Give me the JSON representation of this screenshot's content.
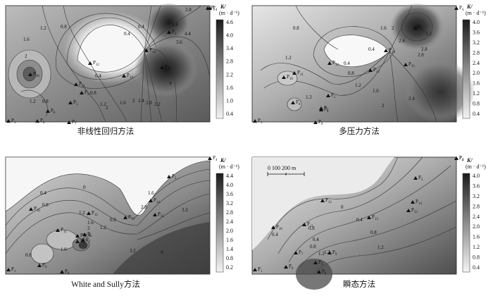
{
  "unit": {
    "k_label": "K/",
    "unit_label": "(m · d⁻¹)"
  },
  "scale_bar": {
    "label": "0 100 200 m"
  },
  "chart_data": [
    {
      "type": "heatmap",
      "caption": "非线性回归方法",
      "colorbar_ticks": [
        "4.6",
        "4.0",
        "3.4",
        "2.8",
        "2.2",
        "1.6",
        "1.0",
        "0.4"
      ],
      "colorbar_range": [
        0.4,
        4.6
      ],
      "wells": [
        {
          "label": "P",
          "sub": "1"
        },
        {
          "label": "P",
          "sub": "2"
        },
        {
          "label": "P",
          "sub": "3"
        },
        {
          "label": "P",
          "sub": "4"
        },
        {
          "label": "P",
          "sub": "5"
        },
        {
          "label": "P",
          "sub": "6"
        },
        {
          "label": "P",
          "sub": "7"
        },
        {
          "label": "P",
          "sub": "8"
        },
        {
          "label": "P",
          "sub": "9"
        },
        {
          "label": "P",
          "sub": "10"
        },
        {
          "label": "P",
          "sub": "11"
        },
        {
          "label": "P",
          "sub": "12"
        },
        {
          "label": "P",
          "sub": "13"
        },
        {
          "label": "P",
          "sub": "14"
        },
        {
          "label": "P",
          "sub": "15"
        }
      ],
      "contour_labels": [
        "1.2",
        "0.8",
        "1.6",
        "2",
        "2",
        "1.2",
        "0.8",
        "0.4",
        "0.4",
        "0.8",
        "1.2",
        "1.6",
        "2",
        "2.4",
        "2.8",
        "3.2",
        "3.6",
        "4",
        "4.4",
        "0.4",
        "2.4",
        "2.8"
      ]
    },
    {
      "type": "heatmap",
      "caption": "多压力方法",
      "colorbar_ticks": [
        "4.0",
        "3.6",
        "3.2",
        "2.8",
        "2.4",
        "2.0",
        "1.6",
        "1.2",
        "0.8",
        "0.4"
      ],
      "colorbar_range": [
        0.4,
        4.0
      ],
      "wells": [
        {
          "label": "P",
          "sub": "1"
        },
        {
          "label": "P",
          "sub": "2"
        },
        {
          "label": "P",
          "sub": "3"
        },
        {
          "label": "P",
          "sub": "4"
        },
        {
          "label": "P",
          "sub": "5"
        },
        {
          "label": "P",
          "sub": "6"
        },
        {
          "label": "P",
          "sub": "7"
        },
        {
          "label": "P",
          "sub": "8"
        },
        {
          "label": "P",
          "sub": "9"
        },
        {
          "label": "P",
          "sub": "10"
        },
        {
          "label": "P",
          "sub": "11"
        },
        {
          "label": "P",
          "sub": "12"
        },
        {
          "label": "P",
          "sub": "13"
        },
        {
          "label": "P",
          "sub": "14"
        },
        {
          "label": "P",
          "sub": "15"
        }
      ],
      "contour_labels": [
        "0.8",
        "0.4",
        "1.2",
        "0.8",
        "0.4",
        "1.2",
        "1.6",
        "2",
        "2.4",
        "2.8",
        "1.2",
        "1.6",
        "2",
        "2.4",
        "3.2",
        "2.8"
      ]
    },
    {
      "type": "heatmap",
      "caption": "White and Sully方法",
      "colorbar_ticks": [
        "4.4",
        "4.0",
        "3.6",
        "3.2",
        "2.8",
        "2.4",
        "2.0",
        "1.6",
        "1.4",
        "0.8",
        "0.2"
      ],
      "colorbar_range": [
        0.2,
        4.4
      ],
      "wells": [
        {
          "label": "P",
          "sub": "1"
        },
        {
          "label": "P",
          "sub": "2"
        },
        {
          "label": "P",
          "sub": "3"
        },
        {
          "label": "P",
          "sub": "4"
        },
        {
          "label": "P",
          "sub": "5"
        },
        {
          "label": "P",
          "sub": "6"
        },
        {
          "label": "P",
          "sub": "7"
        },
        {
          "label": "P",
          "sub": "8"
        },
        {
          "label": "P",
          "sub": "9"
        },
        {
          "label": "P",
          "sub": "10"
        },
        {
          "label": "P",
          "sub": "11"
        },
        {
          "label": "P",
          "sub": "12"
        },
        {
          "label": "P",
          "sub": "13"
        },
        {
          "label": "P",
          "sub": "14"
        },
        {
          "label": "P",
          "sub": "15"
        }
      ],
      "contour_labels": [
        "0",
        "0.4",
        "0.8",
        "1.2",
        "1.6",
        "2",
        "2.4",
        "0.8",
        "1.2",
        "1.6",
        "2.8",
        "3.2",
        "4",
        "0.8",
        "3.2",
        "1.6"
      ]
    },
    {
      "type": "heatmap",
      "caption": "瞬态方法",
      "colorbar_ticks": [
        "4.0",
        "3.6",
        "3.2",
        "2.8",
        "2.4",
        "2.0",
        "1.6",
        "1.2",
        "0.8",
        "0.4"
      ],
      "colorbar_range": [
        0.4,
        4.0
      ],
      "wells": [
        {
          "label": "P",
          "sub": "1"
        },
        {
          "label": "P",
          "sub": "2"
        },
        {
          "label": "P",
          "sub": "3"
        },
        {
          "label": "P",
          "sub": "4"
        },
        {
          "label": "P",
          "sub": "5"
        },
        {
          "label": "P",
          "sub": "6"
        },
        {
          "label": "P",
          "sub": "7"
        },
        {
          "label": "P",
          "sub": "8"
        },
        {
          "label": "P",
          "sub": "9"
        },
        {
          "label": "P",
          "sub": "10"
        },
        {
          "label": "P",
          "sub": "11"
        },
        {
          "label": "P",
          "sub": "12"
        },
        {
          "label": "P",
          "sub": "13"
        },
        {
          "label": "P",
          "sub": "14"
        },
        {
          "label": "P",
          "sub": "15"
        }
      ],
      "contour_labels": [
        "0",
        "0.4",
        "0.8",
        "1.2",
        "0.4",
        "0.8",
        "1.2",
        "0.4",
        "0.8",
        "1.2"
      ]
    }
  ]
}
